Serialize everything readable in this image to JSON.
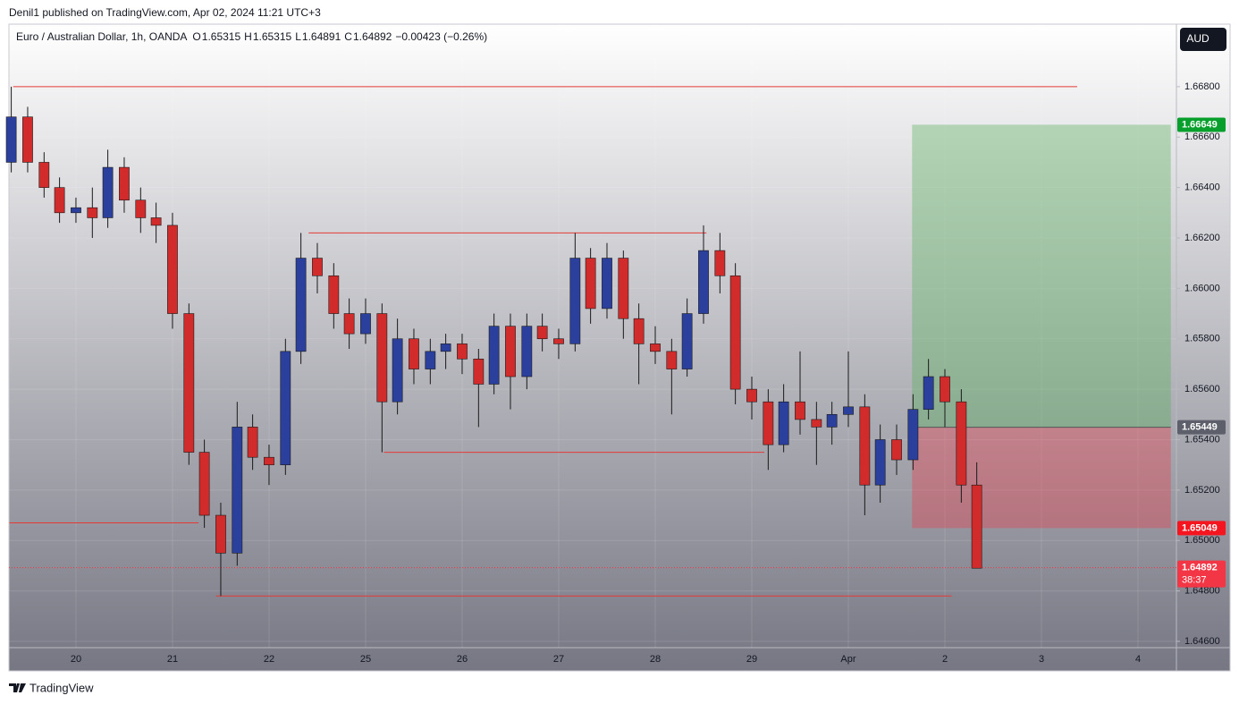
{
  "header": {
    "published": "Denil1 published on TradingView.com, Apr 02, 2024 11:21 UTC+3",
    "symbol": "Euro / Australian Dollar, 1h, OANDA",
    "legend": [
      {
        "label": "O",
        "value": 1.65315
      },
      {
        "label": "H",
        "value": 1.65315
      },
      {
        "label": "L",
        "value": 1.64891
      },
      {
        "label": "C",
        "value": 1.64892
      }
    ],
    "change": "−0.00423 (−0.26%)",
    "currency": "AUD"
  },
  "footer": {
    "brand": "TradingView"
  },
  "chart_data": {
    "type": "candlestick",
    "up_color": "#2b3f9c",
    "down_color": "#d12b2b",
    "grid": true,
    "xlim": [
      -0.694,
      11.398
    ],
    "ylim": [
      1.64575,
      1.67048
    ],
    "yticks": [
      {
        "value": 1.646,
        "label": "1.64600"
      },
      {
        "value": 1.648,
        "label": "1.64800"
      },
      {
        "value": 1.65,
        "label": "1.65000"
      },
      {
        "value": 1.652,
        "label": "1.65200"
      },
      {
        "value": 1.654,
        "label": "1.65400"
      },
      {
        "value": 1.656,
        "label": "1.65600"
      },
      {
        "value": 1.658,
        "label": "1.65800"
      },
      {
        "value": 1.66,
        "label": "1.66000"
      },
      {
        "value": 1.662,
        "label": "1.66200"
      },
      {
        "value": 1.664,
        "label": "1.66400"
      },
      {
        "value": 1.666,
        "label": "1.66600"
      },
      {
        "value": 1.668,
        "label": "1.66800"
      }
    ],
    "xticks": [
      {
        "value": 0,
        "label": "20"
      },
      {
        "value": 1,
        "label": "21"
      },
      {
        "value": 2,
        "label": "22"
      },
      {
        "value": 3,
        "label": "25"
      },
      {
        "value": 4,
        "label": "26"
      },
      {
        "value": 5,
        "label": "27"
      },
      {
        "value": 6,
        "label": "28"
      },
      {
        "value": 7,
        "label": "29"
      },
      {
        "value": 8,
        "label": "Apr"
      },
      {
        "value": 9,
        "label": "2"
      },
      {
        "value": 10,
        "label": "3"
      },
      {
        "value": 11,
        "label": "4"
      }
    ],
    "x": [
      -0.67,
      -0.5,
      -0.33,
      -0.17,
      0,
      0.17,
      0.33,
      0.5,
      0.67,
      0.83,
      1,
      1.17,
      1.33,
      1.5,
      1.67,
      1.83,
      2,
      2.17,
      2.33,
      2.5,
      2.67,
      2.83,
      3,
      3.17,
      3.33,
      3.5,
      3.67,
      3.83,
      4,
      4.17,
      4.33,
      4.5,
      4.67,
      4.83,
      5,
      5.17,
      5.33,
      5.5,
      5.67,
      5.83,
      6,
      6.17,
      6.33,
      6.5,
      6.67,
      6.83,
      7,
      7.17,
      7.33,
      7.5,
      7.67,
      7.83,
      8,
      8.17,
      8.33,
      8.5,
      8.67,
      8.83,
      9,
      9.17,
      9.33
    ],
    "open": [
      1.665,
      1.6668,
      1.665,
      1.664,
      1.663,
      1.6632,
      1.6628,
      1.6648,
      1.6635,
      1.6628,
      1.6625,
      1.659,
      1.6535,
      1.651,
      1.6495,
      1.6545,
      1.6533,
      1.653,
      1.6575,
      1.6612,
      1.6605,
      1.659,
      1.6582,
      1.659,
      1.6555,
      1.658,
      1.6568,
      1.6575,
      1.6578,
      1.6572,
      1.6562,
      1.6585,
      1.6565,
      1.6585,
      1.658,
      1.6578,
      1.6612,
      1.6592,
      1.6612,
      1.6588,
      1.6578,
      1.6575,
      1.6568,
      1.659,
      1.6615,
      1.6605,
      1.656,
      1.6555,
      1.6538,
      1.6555,
      1.6548,
      1.6545,
      1.655,
      1.6553,
      1.6522,
      1.654,
      1.6532,
      1.6552,
      1.6565,
      1.6555,
      1.6522
    ],
    "high": [
      1.668,
      1.6672,
      1.6654,
      1.6644,
      1.6636,
      1.664,
      1.6655,
      1.6652,
      1.664,
      1.6634,
      1.663,
      1.6594,
      1.654,
      1.6515,
      1.6555,
      1.655,
      1.6538,
      1.658,
      1.6622,
      1.6618,
      1.661,
      1.6596,
      1.6596,
      1.6594,
      1.6588,
      1.6584,
      1.658,
      1.6582,
      1.6582,
      1.6576,
      1.659,
      1.659,
      1.659,
      1.659,
      1.6584,
      1.6622,
      1.6616,
      1.6618,
      1.6615,
      1.6594,
      1.6585,
      1.658,
      1.6596,
      1.6625,
      1.6622,
      1.661,
      1.6565,
      1.656,
      1.6562,
      1.6575,
      1.6555,
      1.6555,
      1.6575,
      1.6558,
      1.6546,
      1.6546,
      1.6558,
      1.6572,
      1.6568,
      1.656,
      1.6531
    ],
    "low": [
      1.6646,
      1.6646,
      1.6636,
      1.6626,
      1.6626,
      1.662,
      1.6624,
      1.663,
      1.6622,
      1.6618,
      1.6584,
      1.653,
      1.6505,
      1.6478,
      1.649,
      1.6528,
      1.6522,
      1.6526,
      1.657,
      1.6598,
      1.6584,
      1.6576,
      1.6578,
      1.6535,
      1.655,
      1.6562,
      1.6562,
      1.6568,
      1.6566,
      1.6545,
      1.6558,
      1.6552,
      1.656,
      1.6575,
      1.6572,
      1.6575,
      1.6586,
      1.6588,
      1.658,
      1.6562,
      1.657,
      1.655,
      1.6565,
      1.6586,
      1.6598,
      1.6554,
      1.6548,
      1.6528,
      1.6535,
      1.6542,
      1.653,
      1.6538,
      1.6545,
      1.651,
      1.6515,
      1.6526,
      1.6528,
      1.6548,
      1.6545,
      1.6515,
      1.6489
    ],
    "close": [
      1.6668,
      1.665,
      1.664,
      1.663,
      1.6632,
      1.6628,
      1.6648,
      1.6635,
      1.6628,
      1.6625,
      1.659,
      1.6535,
      1.651,
      1.6495,
      1.6545,
      1.6533,
      1.653,
      1.6575,
      1.6612,
      1.6605,
      1.659,
      1.6582,
      1.659,
      1.6555,
      1.658,
      1.6568,
      1.6575,
      1.6578,
      1.6572,
      1.6562,
      1.6585,
      1.6565,
      1.6585,
      1.658,
      1.6578,
      1.6612,
      1.6592,
      1.6612,
      1.6588,
      1.6578,
      1.6575,
      1.6568,
      1.659,
      1.6615,
      1.6605,
      1.656,
      1.6555,
      1.6538,
      1.6555,
      1.6548,
      1.6545,
      1.655,
      1.6553,
      1.6522,
      1.654,
      1.6532,
      1.6552,
      1.6565,
      1.6555,
      1.6522,
      1.6489
    ],
    "levels": [
      {
        "value": 1.668,
        "x": [
          -0.65,
          10.37
        ]
      },
      {
        "value": 1.6622,
        "x": [
          2.41,
          6.53
        ]
      },
      {
        "value": 1.6535,
        "x": [
          3.19,
          7.13
        ]
      },
      {
        "value": 1.6507,
        "x": [
          -0.69,
          1.27
        ]
      },
      {
        "value": 1.6478,
        "x": [
          1.45,
          9.07
        ]
      }
    ],
    "level_color": "#e53935",
    "position": {
      "target": 1.66649,
      "entry": 1.65449,
      "stop": 1.65049,
      "x": [
        8.66,
        11.34
      ]
    },
    "last_price": {
      "value": 1.64892,
      "countdown": "38:37"
    }
  }
}
